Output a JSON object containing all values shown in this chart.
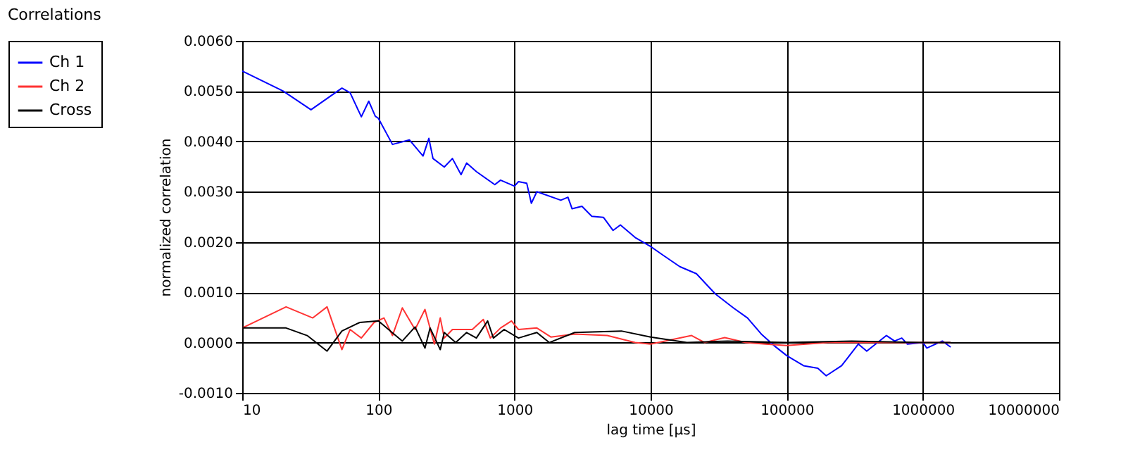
{
  "chart_data": {
    "type": "line",
    "title": "Correlations",
    "xlabel": "lag time [µs]",
    "ylabel": "normalized correlation",
    "log": "x",
    "grid": true,
    "legend": "top left",
    "line_style": "solid",
    "marker": "none",
    "xlim": [
      10,
      10000000
    ],
    "xticks": [
      10,
      100,
      1000,
      10000,
      100000,
      1000000,
      10000000
    ],
    "ylim": [
      -0.001,
      0.006
    ],
    "yticks": [
      {
        "value": -0.001,
        "label": "-0.0010"
      },
      {
        "value": 0,
        "label": "0.0000"
      },
      {
        "value": 0.001,
        "label": "0.0010"
      },
      {
        "value": 0.002,
        "label": "0.0020"
      },
      {
        "value": 0.003,
        "label": "0.0030"
      },
      {
        "value": 0.004,
        "label": "0.0040"
      },
      {
        "value": 0.005,
        "label": "0.0050"
      },
      {
        "value": 0.006,
        "label": "0.0060"
      }
    ],
    "series": [
      {
        "name": "Ch 1",
        "color": "#0000ff",
        "x": [
          10,
          20,
          32,
          54,
          62,
          75,
          85,
          95,
          100,
          127,
          169,
          213,
          235,
          252,
          305,
          350,
          405,
          445,
          525,
          717,
          790,
          1000,
          1070,
          1230,
          1330,
          1460,
          2190,
          2470,
          2650,
          3130,
          3700,
          4500,
          5300,
          6000,
          7700,
          10000,
          12300,
          16400,
          21700,
          29800,
          40500,
          51500,
          65000,
          80700,
          100000,
          133000,
          169000,
          195000,
          253000,
          336000,
          387000,
          540000,
          620000,
          700000,
          770000,
          1000000,
          1070000,
          1390000,
          1600000
        ],
        "values": [
          0.0054,
          0.005,
          0.00463,
          0.00506,
          0.00497,
          0.00449,
          0.0048,
          0.0045,
          0.00446,
          0.00394,
          0.00403,
          0.00371,
          0.00406,
          0.00366,
          0.00349,
          0.00366,
          0.00334,
          0.00357,
          0.0034,
          0.00314,
          0.00323,
          0.00311,
          0.0032,
          0.00317,
          0.00277,
          0.003,
          0.00283,
          0.00289,
          0.00266,
          0.00271,
          0.00251,
          0.00249,
          0.00223,
          0.00234,
          0.00209,
          0.00191,
          0.00174,
          0.00151,
          0.00137,
          0.00097,
          0.00069,
          0.00049,
          0.00017,
          -6e-05,
          -0.00026,
          -0.00046,
          -0.00051,
          -0.00066,
          -0.00046,
          -3e-05,
          -0.00017,
          0.00014,
          3e-05,
          9e-05,
          -3e-05,
          0,
          -0.00011,
          3e-05,
          -9e-05
        ]
      },
      {
        "name": "Ch 2",
        "color": "#ff3333",
        "x": [
          10,
          21,
          33,
          42,
          54,
          62,
          75,
          93,
          110,
          127,
          150,
          186,
          220,
          258,
          285,
          305,
          350,
          490,
          590,
          665,
          790,
          950,
          1070,
          1460,
          1850,
          2770,
          4800,
          7700,
          10000,
          20000,
          25000,
          35000,
          50000,
          70000,
          100000,
          200000,
          500000,
          1000000,
          1600000
        ],
        "values": [
          0.00029,
          0.00071,
          0.00049,
          0.00071,
          -0.00014,
          0.00026,
          9e-05,
          0.0004,
          0.00049,
          0.00014,
          0.00069,
          0.00026,
          0.00066,
          -3e-05,
          0.00049,
          9e-05,
          0.00026,
          0.00026,
          0.00046,
          9e-05,
          0.00029,
          0.00043,
          0.00026,
          0.00029,
          0.00011,
          0.00017,
          0.00014,
          0,
          -3e-05,
          0.00014,
          0,
          0.0001,
          0,
          -3e-05,
          -6e-05,
          0,
          0,
          0,
          0
        ]
      },
      {
        "name": "Cross",
        "color": "#000000",
        "x": [
          10,
          21,
          30,
          42,
          54,
          73,
          100,
          150,
          186,
          220,
          240,
          285,
          305,
          370,
          445,
          525,
          635,
          700,
          840,
          1070,
          1460,
          1800,
          2770,
          6100,
          10000,
          18500,
          36800,
          100000,
          300000,
          1000000,
          1600000
        ],
        "values": [
          0.00029,
          0.00029,
          0.00014,
          -0.00017,
          0.00023,
          0.0004,
          0.00043,
          3e-05,
          0.00031,
          -0.00011,
          0.00029,
          -0.00014,
          0.0002,
          0,
          0.0002,
          9e-05,
          0.00043,
          9e-05,
          0.00026,
          9e-05,
          0.0002,
          0,
          0.0002,
          0.00023,
          0.00011,
          0,
          3e-05,
          0,
          3e-05,
          0,
          0
        ]
      }
    ]
  }
}
